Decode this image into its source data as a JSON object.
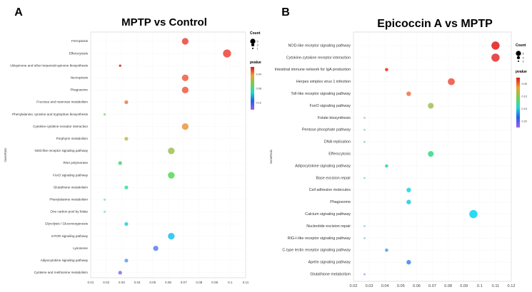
{
  "chart_data": [
    {
      "type": "scatter",
      "panel_label": "A",
      "title": "MPTP vs Control",
      "xlabel": "",
      "ylabel": "GeneRatio",
      "xlim": [
        0.01,
        0.11
      ],
      "x_ticks": [
        "0.01",
        "0.02",
        "0.03",
        "0.04",
        "0.05",
        "0.06",
        "0.07",
        "0.08",
        "0.09",
        "0.1",
        "0.11"
      ],
      "categories": [
        "Ferroptosis",
        "Efferocytosis",
        "Ubiquinone and other terpenoid-quinone biosynthesis",
        "Necroptosis",
        "Phagosome",
        "Fructose and mannose metabolism",
        "Phenylalanine, tyrosine and tryptophan biosynthesis",
        "Cytokine-cytokine receptor interaction",
        "Porphyrin metabolism",
        "NOD-like receptor signaling pathway",
        "RNA polymerase",
        "FoxO signaling pathway",
        "Glutathione metabolism",
        "Phenylalanine metabolism",
        "One carbon pool by folate",
        "Glycolysis / Gluconeogenesis",
        "mTOR signaling pathway",
        "Lysosome",
        "Adipocytokine signaling pathway",
        "Cysteine and methionine metabolism"
      ],
      "points": [
        {
          "pathway": "Ferroptosis",
          "x": 0.071,
          "count": 4,
          "color": "#f0554a"
        },
        {
          "pathway": "Efferocytosis",
          "x": 0.098,
          "count": 5,
          "color": "#f0554a"
        },
        {
          "pathway": "Ubiquinone and other terpenoid-quinone biosynthesis",
          "x": 0.029,
          "count": 1,
          "color": "#e0301e"
        },
        {
          "pathway": "Necroptosis",
          "x": 0.071,
          "count": 4,
          "color": "#f26a50"
        },
        {
          "pathway": "Phagosome",
          "x": 0.071,
          "count": 4,
          "color": "#f26a50"
        },
        {
          "pathway": "Fructose and mannose metabolism",
          "x": 0.033,
          "count": 2,
          "color": "#f3845a"
        },
        {
          "pathway": "Phenylalanine, tyrosine and tryptophan biosynthesis",
          "x": 0.019,
          "count": 1,
          "color": "#a8d8a0"
        },
        {
          "pathway": "Cytokine-cytokine receptor interaction",
          "x": 0.071,
          "count": 4,
          "color": "#f0a050"
        },
        {
          "pathway": "Porphyrin metabolism",
          "x": 0.033,
          "count": 2,
          "color": "#c8c060"
        },
        {
          "pathway": "NOD-like receptor signaling pathway",
          "x": 0.062,
          "count": 4,
          "color": "#a8c860"
        },
        {
          "pathway": "RNA polymerase",
          "x": 0.029,
          "count": 2,
          "color": "#60d880"
        },
        {
          "pathway": "FoxO signaling pathway",
          "x": 0.062,
          "count": 4,
          "color": "#60e060"
        },
        {
          "pathway": "Glutathione metabolism",
          "x": 0.033,
          "count": 2,
          "color": "#40e8a0"
        },
        {
          "pathway": "Phenylalanine metabolism",
          "x": 0.019,
          "count": 1,
          "color": "#a0e0e0"
        },
        {
          "pathway": "One carbon pool by folate",
          "x": 0.019,
          "count": 1,
          "color": "#a0e8d0"
        },
        {
          "pathway": "Glycolysis / Gluconeogenesis",
          "x": 0.033,
          "count": 2,
          "color": "#30d8e8"
        },
        {
          "pathway": "mTOR signaling pathway",
          "x": 0.062,
          "count": 4,
          "color": "#30c8f0"
        },
        {
          "pathway": "Lysosome",
          "x": 0.052,
          "count": 3,
          "color": "#6a8cf0"
        },
        {
          "pathway": "Adipocytokine signaling pathway",
          "x": 0.033,
          "count": 2,
          "color": "#6aa8f0"
        },
        {
          "pathway": "Cysteine and methionine metabolism",
          "x": 0.029,
          "count": 2,
          "color": "#8a80f0"
        }
      ],
      "legend": {
        "size_title": "Count",
        "size_labels": [
          "5",
          "3",
          "1"
        ],
        "color_title": "pvalue",
        "color_labels": [
          "0.04",
          "0.08",
          "0.12"
        ],
        "colors": [
          "#d7191c",
          "#f0a030",
          "#70d050",
          "#20d8d0",
          "#2060f0",
          "#a060f0"
        ]
      }
    },
    {
      "type": "scatter",
      "panel_label": "B",
      "title": "Epicoccin A vs MPTP",
      "xlabel": "",
      "ylabel": "GeneRatio",
      "xlim": [
        0.02,
        0.12
      ],
      "x_ticks": [
        "0.02",
        "0.03",
        "0.04",
        "0.05",
        "0.06",
        "0.07",
        "0.08",
        "0.09",
        "0.1",
        "0.11",
        "0.12"
      ],
      "categories": [
        "NOD-like receptor signaling pathway",
        "Cytokine-cytokine receptor interaction",
        "Intestinal immune network for IgA production",
        "Herpes simplex virus 1 infection",
        "Toll-like receptor signaling pathway",
        "FoxO signaling pathway",
        "Folate biosynthesis",
        "Pentose phosphate pathway",
        "DNA replication",
        "Efferocytosis",
        "Adipocytokine signaling pathway",
        "Base excision repair",
        "Cell adhesion molecules",
        "Phagosome",
        "Calcium signaling pathway",
        "Nucleotide excision repair",
        "RIG-I-like receptor signaling pathway",
        "C-type lectin receptor signaling pathway",
        "Apelin signaling pathway",
        "Glutathione metabolism"
      ],
      "points": [
        {
          "pathway": "NOD-like receptor signaling pathway",
          "x": 0.11,
          "count": 6,
          "color": "#e83030"
        },
        {
          "pathway": "Cytokine-cytokine receptor interaction",
          "x": 0.11,
          "count": 6,
          "color": "#e84040"
        },
        {
          "pathway": "Intestinal immune network for IgA production",
          "x": 0.041,
          "count": 2,
          "color": "#f04030"
        },
        {
          "pathway": "Herpes simplex virus 1 infection",
          "x": 0.082,
          "count": 5,
          "color": "#f06050"
        },
        {
          "pathway": "Toll-like receptor signaling pathway",
          "x": 0.055,
          "count": 3,
          "color": "#f08050"
        },
        {
          "pathway": "FoxO signaling pathway",
          "x": 0.069,
          "count": 4,
          "color": "#a8c860"
        },
        {
          "pathway": "Folate biosynthesis",
          "x": 0.027,
          "count": 1,
          "color": "#b0e0b0"
        },
        {
          "pathway": "Pentose phosphate pathway",
          "x": 0.027,
          "count": 1,
          "color": "#b0e0b0"
        },
        {
          "pathway": "DNA replication",
          "x": 0.027,
          "count": 1,
          "color": "#a0e0c0"
        },
        {
          "pathway": "Efferocytosis",
          "x": 0.069,
          "count": 4,
          "color": "#40e090"
        },
        {
          "pathway": "Adipocytokine signaling pathway",
          "x": 0.041,
          "count": 2,
          "color": "#40e0a0"
        },
        {
          "pathway": "Base excision repair",
          "x": 0.027,
          "count": 1,
          "color": "#a0e0e0"
        },
        {
          "pathway": "Cell adhesion molecules",
          "x": 0.055,
          "count": 3,
          "color": "#30d8e0"
        },
        {
          "pathway": "Phagosome",
          "x": 0.055,
          "count": 3,
          "color": "#30d0e8"
        },
        {
          "pathway": "Calcium signaling pathway",
          "x": 0.096,
          "count": 6,
          "color": "#20d8f0"
        },
        {
          "pathway": "Nucleotide excision repair",
          "x": 0.027,
          "count": 1,
          "color": "#a0e0e8"
        },
        {
          "pathway": "RIG-I-like receptor signaling pathway",
          "x": 0.027,
          "count": 1,
          "color": "#a0d8e8"
        },
        {
          "pathway": "C-type lectin receptor signaling pathway",
          "x": 0.041,
          "count": 2,
          "color": "#50b0f0"
        },
        {
          "pathway": "Apelin signaling pathway",
          "x": 0.055,
          "count": 3,
          "color": "#5090f0"
        },
        {
          "pathway": "Glutathione metabolism",
          "x": 0.027,
          "count": 1,
          "color": "#c0b0f0"
        }
      ],
      "legend": {
        "size_title": "Count",
        "size_labels": [
          "6",
          "4",
          "2"
        ],
        "color_title": "pvalue",
        "color_labels": [
          "0.05",
          "0.10",
          "0.15",
          "0.20"
        ],
        "colors": [
          "#d7191c",
          "#f0a030",
          "#70d050",
          "#20d8d0",
          "#2060f0",
          "#a060f0"
        ]
      }
    }
  ]
}
